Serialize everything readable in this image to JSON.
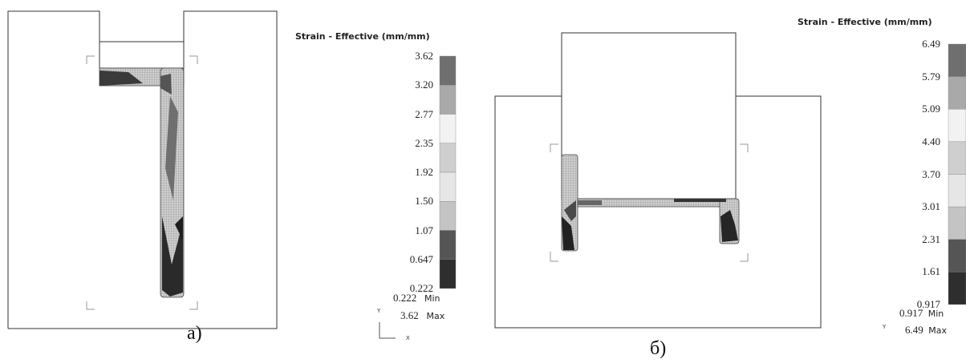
{
  "panels": [
    {
      "caption": "а)",
      "legend": {
        "title": "Strain - Effective (mm/mm)",
        "ticks": [
          "3.62",
          "3.20",
          "2.77",
          "2.35",
          "1.92",
          "1.50",
          "1.07",
          "0.647",
          "0.222"
        ],
        "min_value": "0.222",
        "min_label": "Min",
        "max_value": "3.62",
        "max_label": "Max",
        "band_colors": [
          "#6f6f6f",
          "#a9a9a9",
          "#f2f2f2",
          "#cfcfcf",
          "#e6e6e6",
          "#c4c4c4",
          "#555555",
          "#2e2e2e"
        ]
      },
      "axis": {
        "y": "Y",
        "x": "X"
      }
    },
    {
      "caption": "б)",
      "legend": {
        "title": "Strain - Effective (mm/mm)",
        "ticks": [
          "6.49",
          "5.79",
          "5.09",
          "4.40",
          "3.70",
          "3.01",
          "2.31",
          "1.61",
          "0.917"
        ],
        "min_value": "0.917",
        "min_label": "Min",
        "max_value": "6.49",
        "max_label": "Max",
        "band_colors": [
          "#6f6f6f",
          "#a9a9a9",
          "#f2f2f2",
          "#cfcfcf",
          "#e6e6e6",
          "#c4c4c4",
          "#555555",
          "#2e2e2e"
        ]
      },
      "axis": {
        "y": "Y"
      }
    }
  ]
}
